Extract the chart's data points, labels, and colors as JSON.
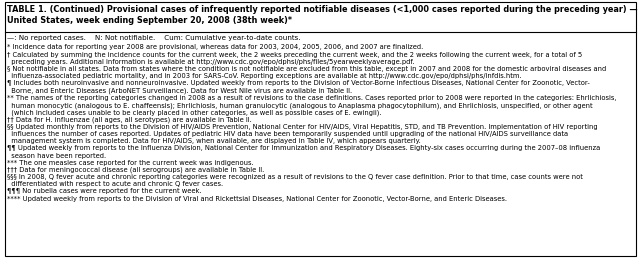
{
  "title_line1": "TABLE 1. (Continued) Provisional cases of infrequently reported notifiable diseases (<1,000 cases reported during the preceding year) —",
  "title_line2": "United States, week ending September 20, 2008 (38th week)*",
  "legend_line": "—: No reported cases.    N: Not notifiable.    Cum: Cumulative year-to-date counts.",
  "footnotes": [
    "* Incidence data for reporting year 2008 are provisional, whereas data for 2003, 2004, 2005, 2006, and 2007 are finalized.",
    "† Calculated by summing the incidence counts for the current week, the 2 weeks preceding the current week, and the 2 weeks following the current week, for a total of 5\n  preceding years. Additional information is available at http://www.cdc.gov/epo/dphsi/phs/files/5yearweeklyaverage.pdf.",
    "§ Not notifiable in all states. Data from states where the condition is not notifiable are excluded from this table, except in 2007 and 2008 for the domestic arboviral diseases and\n  influenza-associated pediatric mortality, and in 2003 for SARS-CoV. Reporting exceptions are available at http://www.cdc.gov/epo/dphsi/phs/infdis.htm.",
    "¶ Includes both neuroinvasive and nonneuroinvasive. Updated weekly from reports to the Division of Vector-Borne Infectious Diseases, National Center for Zoonotic, Vector-\n  Borne, and Enteric Diseases (ArboNET Surveillance). Data for West Nile virus are available in Table II.",
    "** The names of the reporting categories changed in 2008 as a result of revisions to the case definitions. Cases reported prior to 2008 were reported in the categories: Ehrlichiosis,\n  human monocytic (analogous to E. chaffeensis); Ehrlichiosis, human granulocytic (analogous to Anaplasma phagocytophilum), and Ehrlichiosis, unspecified, or other agent\n  (which included cases unable to be clearly placed in other categories, as well as possible cases of E. ewingii).",
    "†† Data for H. influenzae (all ages, all serotypes) are available in Table II.",
    "§§ Updated monthly from reports to the Division of HIV/AIDS Prevention, National Center for HIV/AIDS, Viral Hepatitis, STD, and TB Prevention. Implementation of HIV reporting\n  influences the number of cases reported. Updates of pediatric HIV data have been temporarily suspended until upgrading of the national HIV/AIDS surveillance data\n  management system is completed. Data for HIV/AIDS, when available, are displayed in Table IV, which appears quarterly.",
    "¶¶ Updated weekly from reports to the Influenza Division, National Center for Immunization and Respiratory Diseases. Eighty-six cases occurring during the 2007–08 influenza\n  season have been reported.",
    "*** The one measles case reported for the current week was indigenous.",
    "††† Data for meningococcal disease (all serogroups) are available in Table II.",
    "§§§ In 2008, Q fever acute and chronic reporting categories were recognized as a result of revisions to the Q fever case definition. Prior to that time, case counts were not\n  differentiated with respect to acute and chronic Q fever cases.",
    "¶¶¶ No rubella cases were reported for the current week.",
    "**** Updated weekly from reports to the Division of Viral and Rickettsial Diseases, National Center for Zoonotic, Vector-Borne, and Enteric Diseases."
  ],
  "bg_color": "#ffffff",
  "text_color": "#000000",
  "title_fontsize": 5.9,
  "body_fontsize": 4.85,
  "legend_fontsize": 5.1,
  "border_color": "#000000",
  "fig_width": 6.41,
  "fig_height": 2.58,
  "dpi": 100
}
